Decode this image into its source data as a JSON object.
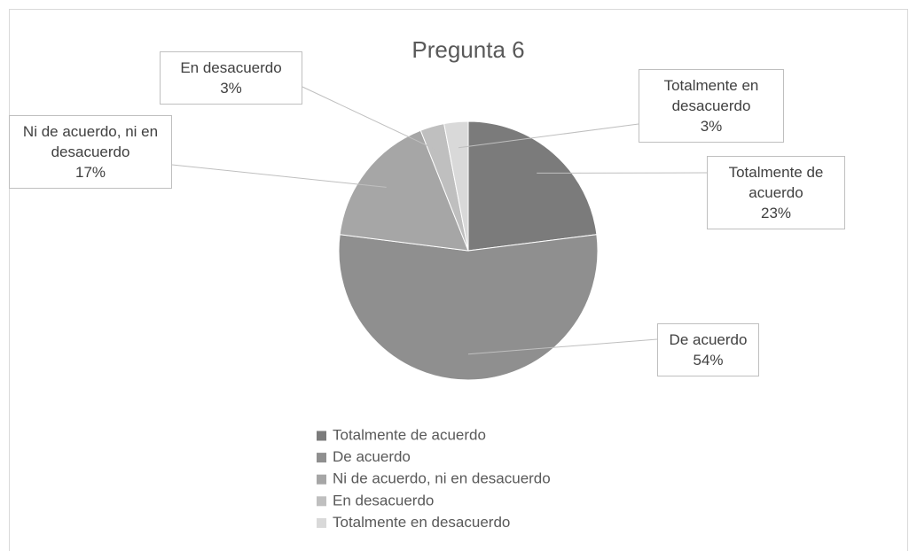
{
  "chart_data": {
    "type": "pie",
    "title": "Pregunta 6",
    "categories": [
      "Totalmente de acuerdo",
      "De acuerdo",
      "Ni de acuerdo, ni en desacuerdo",
      "En desacuerdo",
      "Totalmente en desacuerdo"
    ],
    "values": [
      23,
      54,
      17,
      3,
      3
    ],
    "value_labels": [
      "23%",
      "54%",
      "17%",
      "3%",
      "3%"
    ],
    "colors": [
      "#7b7b7b",
      "#8f8f8f",
      "#a6a6a6",
      "#bfbfbf",
      "#d9d9d9"
    ],
    "legend": "bottom"
  }
}
